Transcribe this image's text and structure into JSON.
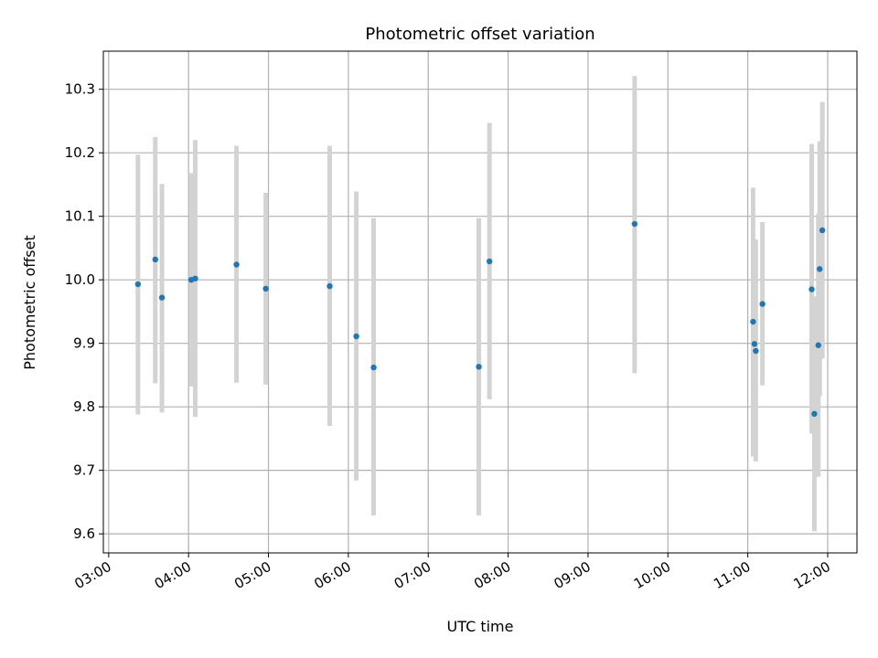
{
  "chart_data": {
    "type": "scatter",
    "title": "Photometric offset variation",
    "xlabel": "UTC time",
    "ylabel": "Photometric offset",
    "xlim": [
      "02:56",
      "12:22"
    ],
    "ylim": [
      9.57,
      10.36
    ],
    "x_ticks": [
      "03:00",
      "04:00",
      "05:00",
      "06:00",
      "07:00",
      "08:00",
      "09:00",
      "10:00",
      "11:00",
      "12:00"
    ],
    "y_ticks": [
      9.6,
      9.7,
      9.8,
      9.9,
      10.0,
      10.1,
      10.2,
      10.3
    ],
    "grid": true,
    "colors": {
      "point": "#1f77b4",
      "errorbar": "#d3d3d3",
      "grid": "#b0b0b0"
    },
    "series": [
      {
        "points": [
          {
            "x": "03:22",
            "y": 9.993,
            "low": 9.788,
            "high": 10.197
          },
          {
            "x": "03:35",
            "y": 10.032,
            "low": 9.837,
            "high": 10.225
          },
          {
            "x": "03:40",
            "y": 9.972,
            "low": 9.791,
            "high": 10.151
          },
          {
            "x": "04:02",
            "y": 10.0,
            "low": 9.832,
            "high": 10.168
          },
          {
            "x": "04:05",
            "y": 10.002,
            "low": 9.784,
            "high": 10.22
          },
          {
            "x": "04:36",
            "y": 10.024,
            "low": 9.838,
            "high": 10.211
          },
          {
            "x": "04:58",
            "y": 9.986,
            "low": 9.835,
            "high": 10.137
          },
          {
            "x": "05:46",
            "y": 9.99,
            "low": 9.77,
            "high": 10.211
          },
          {
            "x": "06:06",
            "y": 9.911,
            "low": 9.684,
            "high": 10.139
          },
          {
            "x": "06:19",
            "y": 9.862,
            "low": 9.629,
            "high": 10.097
          },
          {
            "x": "07:38",
            "y": 9.863,
            "low": 9.629,
            "high": 10.097
          },
          {
            "x": "07:46",
            "y": 10.029,
            "low": 9.812,
            "high": 10.247
          },
          {
            "x": "09:35",
            "y": 10.088,
            "low": 9.853,
            "high": 10.321
          },
          {
            "x": "11:04",
            "y": 9.934,
            "low": 9.722,
            "high": 10.145
          },
          {
            "x": "11:05",
            "y": 9.899,
            "low": 9.733,
            "high": 10.064
          },
          {
            "x": "11:06",
            "y": 9.888,
            "low": 9.714,
            "high": 10.063
          },
          {
            "x": "11:11",
            "y": 9.962,
            "low": 9.834,
            "high": 10.091
          },
          {
            "x": "11:48",
            "y": 9.985,
            "low": 9.758,
            "high": 10.214
          },
          {
            "x": "11:50",
            "y": 9.789,
            "low": 9.604,
            "high": 9.974
          },
          {
            "x": "11:53",
            "y": 9.897,
            "low": 9.69,
            "high": 10.104
          },
          {
            "x": "11:54",
            "y": 10.017,
            "low": 9.817,
            "high": 10.218
          },
          {
            "x": "11:56",
            "y": 10.078,
            "low": 9.876,
            "high": 10.28
          }
        ]
      }
    ]
  }
}
